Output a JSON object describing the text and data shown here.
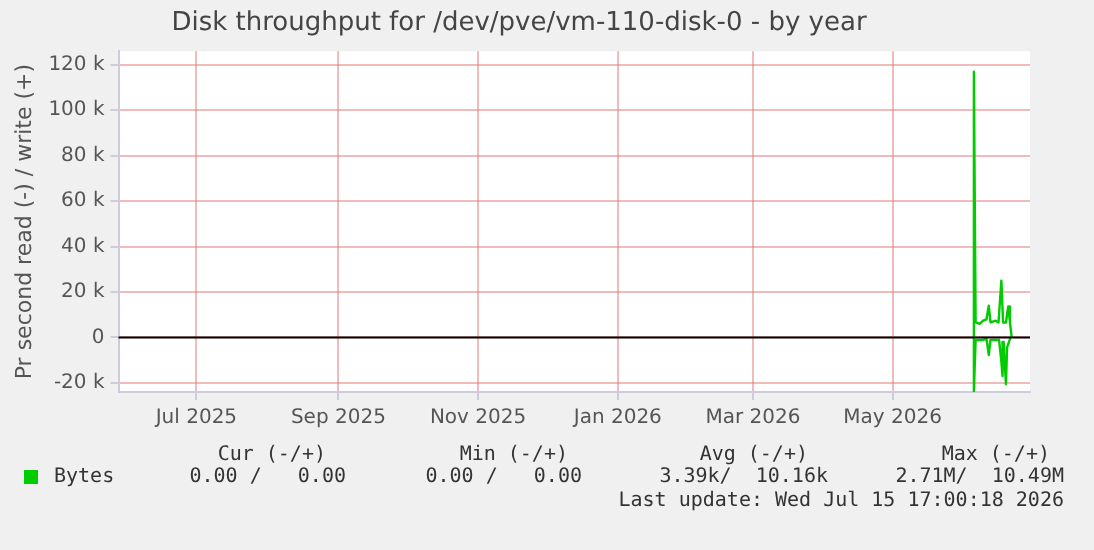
{
  "chart_data": {
    "type": "line",
    "title": "Disk throughput for /dev/pve/vm-110-disk-0 - by year",
    "ylabel": "Pr second read (-) / write (+)",
    "xlim": [
      "2025-06-12",
      "2026-07-15"
    ],
    "xticks": [
      {
        "value": "2025-07-16",
        "label": "Jul 2025"
      },
      {
        "value": "2025-09-16",
        "label": "Sep 2025"
      },
      {
        "value": "2025-11-16",
        "label": "Nov 2025"
      },
      {
        "value": "2026-01-16",
        "label": "Jan 2026"
      },
      {
        "value": "2026-03-16",
        "label": "Mar 2026"
      },
      {
        "value": "2026-05-16",
        "label": "May 2026"
      }
    ],
    "ylim": [
      -24000,
      126000
    ],
    "yticks": [
      {
        "value": -20000,
        "label": "-20 k"
      },
      0,
      {
        "value": 20000,
        "label": "20 k"
      },
      {
        "value": 40000,
        "label": "40 k"
      },
      {
        "value": 60000,
        "label": "60 k"
      },
      {
        "value": 80000,
        "label": "80 k"
      },
      {
        "value": 100000,
        "label": "100 k"
      },
      {
        "value": 120000,
        "label": "120 k"
      }
    ],
    "grid": true,
    "legend": "bottom left",
    "ref_lines": [
      {
        "axis": "y",
        "value": 0,
        "color": "#000000"
      }
    ],
    "series": [
      {
        "name": "Bytes",
        "color": "#00cc00",
        "x": [
          "2026-07-06T12:00",
          "2026-07-05T00:00",
          "2026-07-04T12:00",
          "2026-07-03T12:00",
          "2026-07-03T00:00",
          "2026-07-02T12:00",
          "2026-07-01T12:00",
          "2026-06-30T00:00",
          "2026-06-27T18:00",
          "2026-06-27T00:00",
          "2026-06-26T00:00",
          "2026-06-24T12:00",
          "2026-06-21T06:00",
          "2026-06-20T12:00",
          "2026-06-20T12:00",
          "2026-06-21T06:00",
          "2026-06-23T00:00",
          "2026-06-24T12:00",
          "2026-06-26T00:00",
          "2026-06-27T00:00",
          "2026-06-27T18:00",
          "2026-06-30T00:00",
          "2026-07-01T06:00",
          "2026-07-02T12:00",
          "2026-07-03T06:00",
          "2026-07-04T12:00",
          "2026-07-05T12:00",
          "2026-07-06T06:00",
          "2026-07-07T00:00"
        ],
        "values": [
          0,
          -4400,
          -20600,
          -2000,
          -17000,
          -10600,
          -1100,
          -1100,
          -1100,
          -7700,
          -600,
          -1100,
          -1100,
          -24000,
          117000,
          6600,
          6000,
          7400,
          8000,
          14000,
          6600,
          7400,
          6600,
          25000,
          6600,
          6600,
          13700,
          6600,
          0
        ]
      }
    ],
    "annotations": [
      "Cur (-/+)",
      "Min (-/+)",
      "Avg (-/+)",
      "Max (-/+)",
      "0.00 /   0.00",
      "0.00 /   0.00",
      "3.39k/  10.16k",
      "2.71M/  10.49M",
      "Last update: Wed Jul 15 17:00:18 2026"
    ]
  }
}
